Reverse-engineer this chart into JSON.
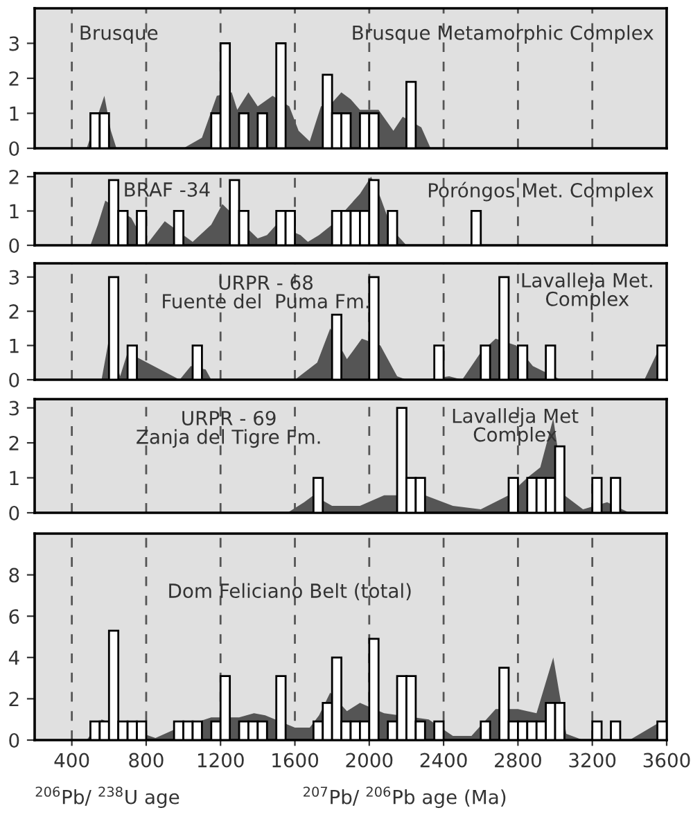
{
  "chart_data": [
    {
      "type": "bar",
      "xlim": [
        200,
        3600
      ],
      "ylim": [
        0,
        4
      ],
      "yticks": [
        0,
        1,
        2,
        3
      ],
      "xticks": [
        400,
        800,
        1200,
        1600,
        2000,
        2400,
        2800,
        3200,
        3600
      ],
      "tick_labels": "y",
      "annotations": [
        "Brusque",
        "Brusque Metamorphic Complex"
      ],
      "ref_lines": [
        {
          "axis": "x",
          "value": 400,
          "line_style": "dashed"
        },
        {
          "axis": "x",
          "value": 800,
          "line_style": "dashed"
        },
        {
          "axis": "x",
          "value": 1200,
          "line_style": "dashed"
        },
        {
          "axis": "x",
          "value": 1600,
          "line_style": "dashed"
        },
        {
          "axis": "x",
          "value": 2000,
          "line_style": "dashed"
        },
        {
          "axis": "x",
          "value": 2400,
          "line_style": "dashed"
        },
        {
          "axis": "x",
          "value": 2800,
          "line_style": "dashed"
        },
        {
          "axis": "x",
          "value": 3200,
          "line_style": "dashed"
        }
      ],
      "series": [
        {
          "type": "area",
          "color": "#555555",
          "x": [
            480,
            575,
            610,
            640,
            1000,
            1100,
            1180,
            1260,
            1290,
            1350,
            1400,
            1480,
            1570,
            1620,
            1680,
            1740,
            1800,
            1850,
            1900,
            1950,
            2050,
            2130,
            2180,
            2280,
            2330
          ],
          "values": [
            0,
            1.5,
            0.5,
            0,
            0,
            0.3,
            1.5,
            1.6,
            1.1,
            1.6,
            1.2,
            1.5,
            1.2,
            0.5,
            0.2,
            1.2,
            1.3,
            1.6,
            1.4,
            1.1,
            1.1,
            0.5,
            0.9,
            0.6,
            0
          ]
        },
        {
          "type": "bar",
          "color": "#ffffff",
          "x": [
            525,
            575,
            1175,
            1225,
            1325,
            1425,
            1525,
            1775,
            1825,
            1875,
            1975,
            2025,
            2225
          ],
          "values": [
            1,
            1,
            1,
            3,
            1,
            1,
            3,
            2.1,
            1,
            1,
            1,
            1,
            1.9
          ]
        }
      ]
    },
    {
      "type": "bar",
      "xlim": [
        200,
        3600
      ],
      "ylim": [
        0,
        2.1
      ],
      "yticks": [
        0,
        1,
        2
      ],
      "xticks": [
        400,
        800,
        1200,
        1600,
        2000,
        2400,
        2800,
        3200,
        3600
      ],
      "tick_labels": "y",
      "annotations": [
        "BRAF -34",
        "Poróngos Met. Complex"
      ],
      "ref_lines": [
        {
          "axis": "x",
          "value": 400,
          "line_style": "dashed"
        },
        {
          "axis": "x",
          "value": 800,
          "line_style": "dashed"
        },
        {
          "axis": "x",
          "value": 1200,
          "line_style": "dashed"
        },
        {
          "axis": "x",
          "value": 1600,
          "line_style": "dashed"
        },
        {
          "axis": "x",
          "value": 2000,
          "line_style": "dashed"
        },
        {
          "axis": "x",
          "value": 2400,
          "line_style": "dashed"
        },
        {
          "axis": "x",
          "value": 2800,
          "line_style": "dashed"
        },
        {
          "axis": "x",
          "value": 3200,
          "line_style": "dashed"
        }
      ],
      "series": [
        {
          "type": "area",
          "color": "#555555",
          "x": [
            500,
            540,
            580,
            720,
            800,
            900,
            1000,
            1050,
            1150,
            1210,
            1400,
            1450,
            1500,
            1630,
            1670,
            1730,
            1800,
            1950,
            2010,
            2060,
            2100,
            2150,
            2200
          ],
          "values": [
            0,
            0.6,
            1.3,
            0.8,
            0,
            0.7,
            0.3,
            0.1,
            0.6,
            1.2,
            0.2,
            0.3,
            0.6,
            0.3,
            0.1,
            0.3,
            0.6,
            1.5,
            2,
            1.4,
            0.8,
            0.3,
            0
          ]
        },
        {
          "type": "bar",
          "color": "#ffffff",
          "x": [
            625,
            675,
            775,
            975,
            1275,
            1325,
            1525,
            1575,
            1825,
            1875,
            1925,
            1975,
            2025,
            2125,
            2575
          ],
          "values": [
            1.9,
            1,
            1,
            1,
            1.9,
            1,
            1,
            1,
            1,
            1,
            1,
            1,
            1.9,
            1,
            1
          ]
        }
      ]
    },
    {
      "type": "bar",
      "xlim": [
        200,
        3600
      ],
      "ylim": [
        0,
        3.4
      ],
      "yticks": [
        0,
        1,
        2,
        3
      ],
      "xticks": [
        400,
        800,
        1200,
        1600,
        2000,
        2400,
        2800,
        3200,
        3600
      ],
      "tick_labels": "y",
      "annotations": [
        "URPR - 68\nFuente del  Puma Fm.",
        "Lavalleja Met.\nComplex"
      ],
      "ref_lines": [
        {
          "axis": "x",
          "value": 400,
          "line_style": "dashed"
        },
        {
          "axis": "x",
          "value": 800,
          "line_style": "dashed"
        },
        {
          "axis": "x",
          "value": 1200,
          "line_style": "dashed"
        },
        {
          "axis": "x",
          "value": 1600,
          "line_style": "dashed"
        },
        {
          "axis": "x",
          "value": 2000,
          "line_style": "dashed"
        },
        {
          "axis": "x",
          "value": 2400,
          "line_style": "dashed"
        },
        {
          "axis": "x",
          "value": 2800,
          "line_style": "dashed"
        },
        {
          "axis": "x",
          "value": 3200,
          "line_style": "dashed"
        }
      ],
      "series": [
        {
          "type": "area",
          "color": "#555555",
          "x": [
            560,
            600,
            660,
            700,
            980,
            1040,
            1120,
            1150,
            1600,
            1720,
            1790,
            1880,
            1960,
            2060,
            2150,
            2200,
            2300,
            2430,
            2500,
            2600,
            2680,
            2790,
            2880,
            3030,
            3480,
            3550
          ],
          "values": [
            0,
            1.2,
            0.1,
            0.8,
            0,
            0.4,
            0.3,
            0,
            0,
            0.5,
            1.5,
            0.6,
            1.2,
            1,
            0.1,
            0,
            0,
            0.1,
            0,
            0.8,
            1.2,
            1,
            0.4,
            0,
            0,
            0.8
          ]
        },
        {
          "type": "bar",
          "color": "#ffffff",
          "x": [
            625,
            725,
            1075,
            1825,
            2025,
            2375,
            2625,
            2725,
            2825,
            2975,
            3575
          ],
          "values": [
            3,
            1,
            1,
            1.9,
            3,
            1,
            1,
            3,
            1,
            1,
            1
          ]
        }
      ]
    },
    {
      "type": "bar",
      "xlim": [
        200,
        3600
      ],
      "ylim": [
        0,
        3.25
      ],
      "yticks": [
        0,
        1,
        2,
        3
      ],
      "xticks": [
        400,
        800,
        1200,
        1600,
        2000,
        2400,
        2800,
        3200,
        3600
      ],
      "tick_labels": "y",
      "annotations": [
        "URPR - 69\nZanja del Tigre Fm.",
        "Lavalleja Met\nComplex"
      ],
      "ref_lines": [
        {
          "axis": "x",
          "value": 400,
          "line_style": "dashed"
        },
        {
          "axis": "x",
          "value": 800,
          "line_style": "dashed"
        },
        {
          "axis": "x",
          "value": 1200,
          "line_style": "dashed"
        },
        {
          "axis": "x",
          "value": 1600,
          "line_style": "dashed"
        },
        {
          "axis": "x",
          "value": 2000,
          "line_style": "dashed"
        },
        {
          "axis": "x",
          "value": 2400,
          "line_style": "dashed"
        },
        {
          "axis": "x",
          "value": 2800,
          "line_style": "dashed"
        },
        {
          "axis": "x",
          "value": 3200,
          "line_style": "dashed"
        }
      ],
      "series": [
        {
          "type": "area",
          "color": "#555555",
          "x": [
            1560,
            1650,
            1700,
            1800,
            1950,
            2080,
            2300,
            2450,
            2600,
            2750,
            2850,
            2920,
            2990,
            3050,
            3150,
            3280,
            3400
          ],
          "values": [
            0,
            0.3,
            0.5,
            0.2,
            0.2,
            0.5,
            0.5,
            0.2,
            0.1,
            0.5,
            1,
            1.3,
            2.7,
            0.5,
            0.1,
            0.3,
            0
          ]
        },
        {
          "type": "bar",
          "color": "#ffffff",
          "x": [
            1725,
            2175,
            2225,
            2275,
            2775,
            2875,
            2925,
            2975,
            3025,
            3225,
            3325
          ],
          "values": [
            1,
            3,
            1,
            1,
            1,
            1,
            1,
            1,
            1.9,
            1,
            1
          ]
        }
      ]
    },
    {
      "type": "bar",
      "xlim": [
        200,
        3600
      ],
      "ylim": [
        0,
        10
      ],
      "yticks": [
        0,
        2,
        4,
        6,
        8
      ],
      "xticks": [
        400,
        800,
        1200,
        1600,
        2000,
        2400,
        2800,
        3200,
        3600
      ],
      "xlabel": "$^{206}$Pb/ $^{238}$U age                    $^{207}$Pb/ $^{206}$Pb age (Ma)",
      "annotations": [
        "Dom Feliciano Belt (total)"
      ],
      "ref_lines": [
        {
          "axis": "x",
          "value": 400,
          "line_style": "dashed"
        },
        {
          "axis": "x",
          "value": 800,
          "line_style": "dashed"
        },
        {
          "axis": "x",
          "value": 1200,
          "line_style": "dashed"
        },
        {
          "axis": "x",
          "value": 1600,
          "line_style": "dashed"
        },
        {
          "axis": "x",
          "value": 2000,
          "line_style": "dashed"
        },
        {
          "axis": "x",
          "value": 2400,
          "line_style": "dashed"
        },
        {
          "axis": "x",
          "value": 2800,
          "line_style": "dashed"
        },
        {
          "axis": "x",
          "value": 3200,
          "line_style": "dashed"
        }
      ],
      "series": [
        {
          "type": "area",
          "color": "#555555",
          "x": [
            480,
            560,
            850,
            950,
            1150,
            1300,
            1380,
            1440,
            1600,
            1680,
            1730,
            1790,
            1880,
            1950,
            2080,
            2320,
            2450,
            2550,
            2680,
            2800,
            2900,
            2990,
            3060,
            3150,
            3400,
            3550
          ],
          "values": [
            0,
            1,
            0.1,
            0.5,
            1.1,
            1.1,
            1.3,
            1.2,
            0.6,
            0.6,
            1.2,
            2.3,
            1.4,
            1.8,
            1.3,
            1,
            0.2,
            0.2,
            1.5,
            1.5,
            1.3,
            4,
            0.3,
            0,
            0,
            0.8
          ]
        },
        {
          "type": "bar",
          "color": "#ffffff",
          "x": [
            525,
            575,
            625,
            675,
            725,
            775,
            975,
            1025,
            1075,
            1175,
            1225,
            1325,
            1375,
            1425,
            1525,
            1725,
            1775,
            1825,
            1875,
            1925,
            1975,
            2025,
            2125,
            2175,
            2225,
            2275,
            2375,
            2625,
            2725,
            2775,
            2825,
            2875,
            2925,
            2975,
            3025,
            3225,
            3325,
            3575
          ],
          "values": [
            0.9,
            0.9,
            5.3,
            0.9,
            0.9,
            0.9,
            0.9,
            0.9,
            0.9,
            0.9,
            3.1,
            0.9,
            0.9,
            0.9,
            3.1,
            0.9,
            1.8,
            4.0,
            0.9,
            0.9,
            0.9,
            4.9,
            0.9,
            3.1,
            3.1,
            0.9,
            0.9,
            0.9,
            3.5,
            0.9,
            0.9,
            0.9,
            0.9,
            1.8,
            1.8,
            0.9,
            0.9,
            0.9
          ]
        }
      ]
    }
  ]
}
